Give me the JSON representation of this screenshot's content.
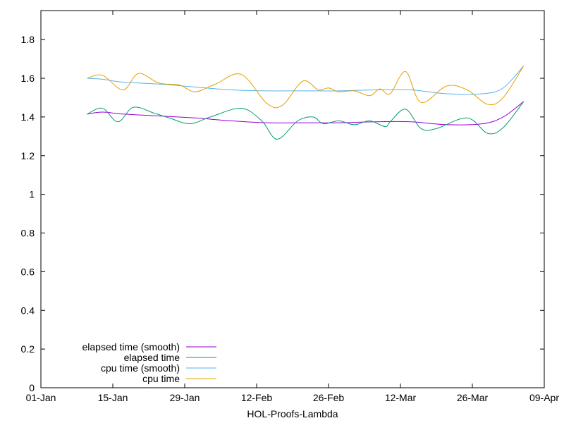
{
  "chart_data": {
    "type": "line",
    "title": "",
    "xlabel": "HOL-Proofs-Lambda",
    "ylabel": "",
    "x_tick_labels": [
      "01-Jan",
      "15-Jan",
      "29-Jan",
      "12-Feb",
      "26-Feb",
      "12-Mar",
      "26-Mar",
      "09-Apr"
    ],
    "y_tick_labels": [
      "0",
      "0.2",
      "0.4",
      "0.6",
      "0.8",
      "1",
      "1.2",
      "1.4",
      "1.6",
      "1.8"
    ],
    "xlim": [
      "2021-01-01",
      "2021-04-09"
    ],
    "ylim": [
      0,
      1.95
    ],
    "grid": false,
    "legend_position": "bottom-left",
    "series": [
      {
        "name": "elapsed time (smooth)",
        "color": "#9400d3",
        "points": [
          [
            "2021-01-10",
            1.415
          ],
          [
            "2021-01-13",
            1.425
          ],
          [
            "2021-01-17",
            1.415
          ],
          [
            "2021-01-24",
            1.405
          ],
          [
            "2021-01-31",
            1.395
          ],
          [
            "2021-02-07",
            1.38
          ],
          [
            "2021-02-14",
            1.37
          ],
          [
            "2021-02-21",
            1.37
          ],
          [
            "2021-02-28",
            1.37
          ],
          [
            "2021-03-07",
            1.375
          ],
          [
            "2021-03-14",
            1.375
          ],
          [
            "2021-03-21",
            1.36
          ],
          [
            "2021-03-28",
            1.365
          ],
          [
            "2021-04-01",
            1.4
          ],
          [
            "2021-04-05",
            1.48
          ]
        ]
      },
      {
        "name": "elapsed time",
        "color": "#009e73",
        "points": [
          [
            "2021-01-10",
            1.415
          ],
          [
            "2021-01-13",
            1.445
          ],
          [
            "2021-01-16",
            1.375
          ],
          [
            "2021-01-19",
            1.45
          ],
          [
            "2021-01-23",
            1.42
          ],
          [
            "2021-01-26",
            1.395
          ],
          [
            "2021-01-30",
            1.365
          ],
          [
            "2021-02-03",
            1.4
          ],
          [
            "2021-02-09",
            1.445
          ],
          [
            "2021-02-13",
            1.38
          ],
          [
            "2021-02-16",
            1.285
          ],
          [
            "2021-02-20",
            1.38
          ],
          [
            "2021-02-23",
            1.4
          ],
          [
            "2021-02-25",
            1.365
          ],
          [
            "2021-02-28",
            1.38
          ],
          [
            "2021-03-03",
            1.36
          ],
          [
            "2021-03-06",
            1.38
          ],
          [
            "2021-03-09",
            1.35
          ],
          [
            "2021-03-10",
            1.375
          ],
          [
            "2021-03-13",
            1.44
          ],
          [
            "2021-03-16",
            1.34
          ],
          [
            "2021-03-19",
            1.34
          ],
          [
            "2021-03-25",
            1.395
          ],
          [
            "2021-03-29",
            1.315
          ],
          [
            "2021-04-01",
            1.345
          ],
          [
            "2021-04-05",
            1.48
          ]
        ]
      },
      {
        "name": "cpu time (smooth)",
        "color": "#56b4e9",
        "points": [
          [
            "2021-01-10",
            1.6
          ],
          [
            "2021-01-13",
            1.595
          ],
          [
            "2021-01-17",
            1.58
          ],
          [
            "2021-01-24",
            1.57
          ],
          [
            "2021-01-31",
            1.555
          ],
          [
            "2021-02-07",
            1.54
          ],
          [
            "2021-02-14",
            1.535
          ],
          [
            "2021-02-21",
            1.535
          ],
          [
            "2021-02-28",
            1.535
          ],
          [
            "2021-03-07",
            1.54
          ],
          [
            "2021-03-14",
            1.54
          ],
          [
            "2021-03-21",
            1.52
          ],
          [
            "2021-03-28",
            1.52
          ],
          [
            "2021-04-01",
            1.55
          ],
          [
            "2021-04-05",
            1.665
          ]
        ]
      },
      {
        "name": "cpu time",
        "color": "#e69f00",
        "points": [
          [
            "2021-01-10",
            1.6
          ],
          [
            "2021-01-13",
            1.615
          ],
          [
            "2021-01-17",
            1.54
          ],
          [
            "2021-01-20",
            1.625
          ],
          [
            "2021-01-24",
            1.575
          ],
          [
            "2021-01-28",
            1.565
          ],
          [
            "2021-01-31",
            1.53
          ],
          [
            "2021-02-04",
            1.57
          ],
          [
            "2021-02-09",
            1.62
          ],
          [
            "2021-02-14",
            1.47
          ],
          [
            "2021-02-17",
            1.46
          ],
          [
            "2021-02-21",
            1.585
          ],
          [
            "2021-02-24",
            1.54
          ],
          [
            "2021-02-26",
            1.55
          ],
          [
            "2021-02-28",
            1.53
          ],
          [
            "2021-03-03",
            1.535
          ],
          [
            "2021-03-06",
            1.51
          ],
          [
            "2021-03-08",
            1.545
          ],
          [
            "2021-03-10",
            1.52
          ],
          [
            "2021-03-13",
            1.635
          ],
          [
            "2021-03-16",
            1.475
          ],
          [
            "2021-03-21",
            1.56
          ],
          [
            "2021-03-25",
            1.54
          ],
          [
            "2021-03-29",
            1.465
          ],
          [
            "2021-04-01",
            1.5
          ],
          [
            "2021-04-05",
            1.665
          ]
        ]
      }
    ]
  }
}
